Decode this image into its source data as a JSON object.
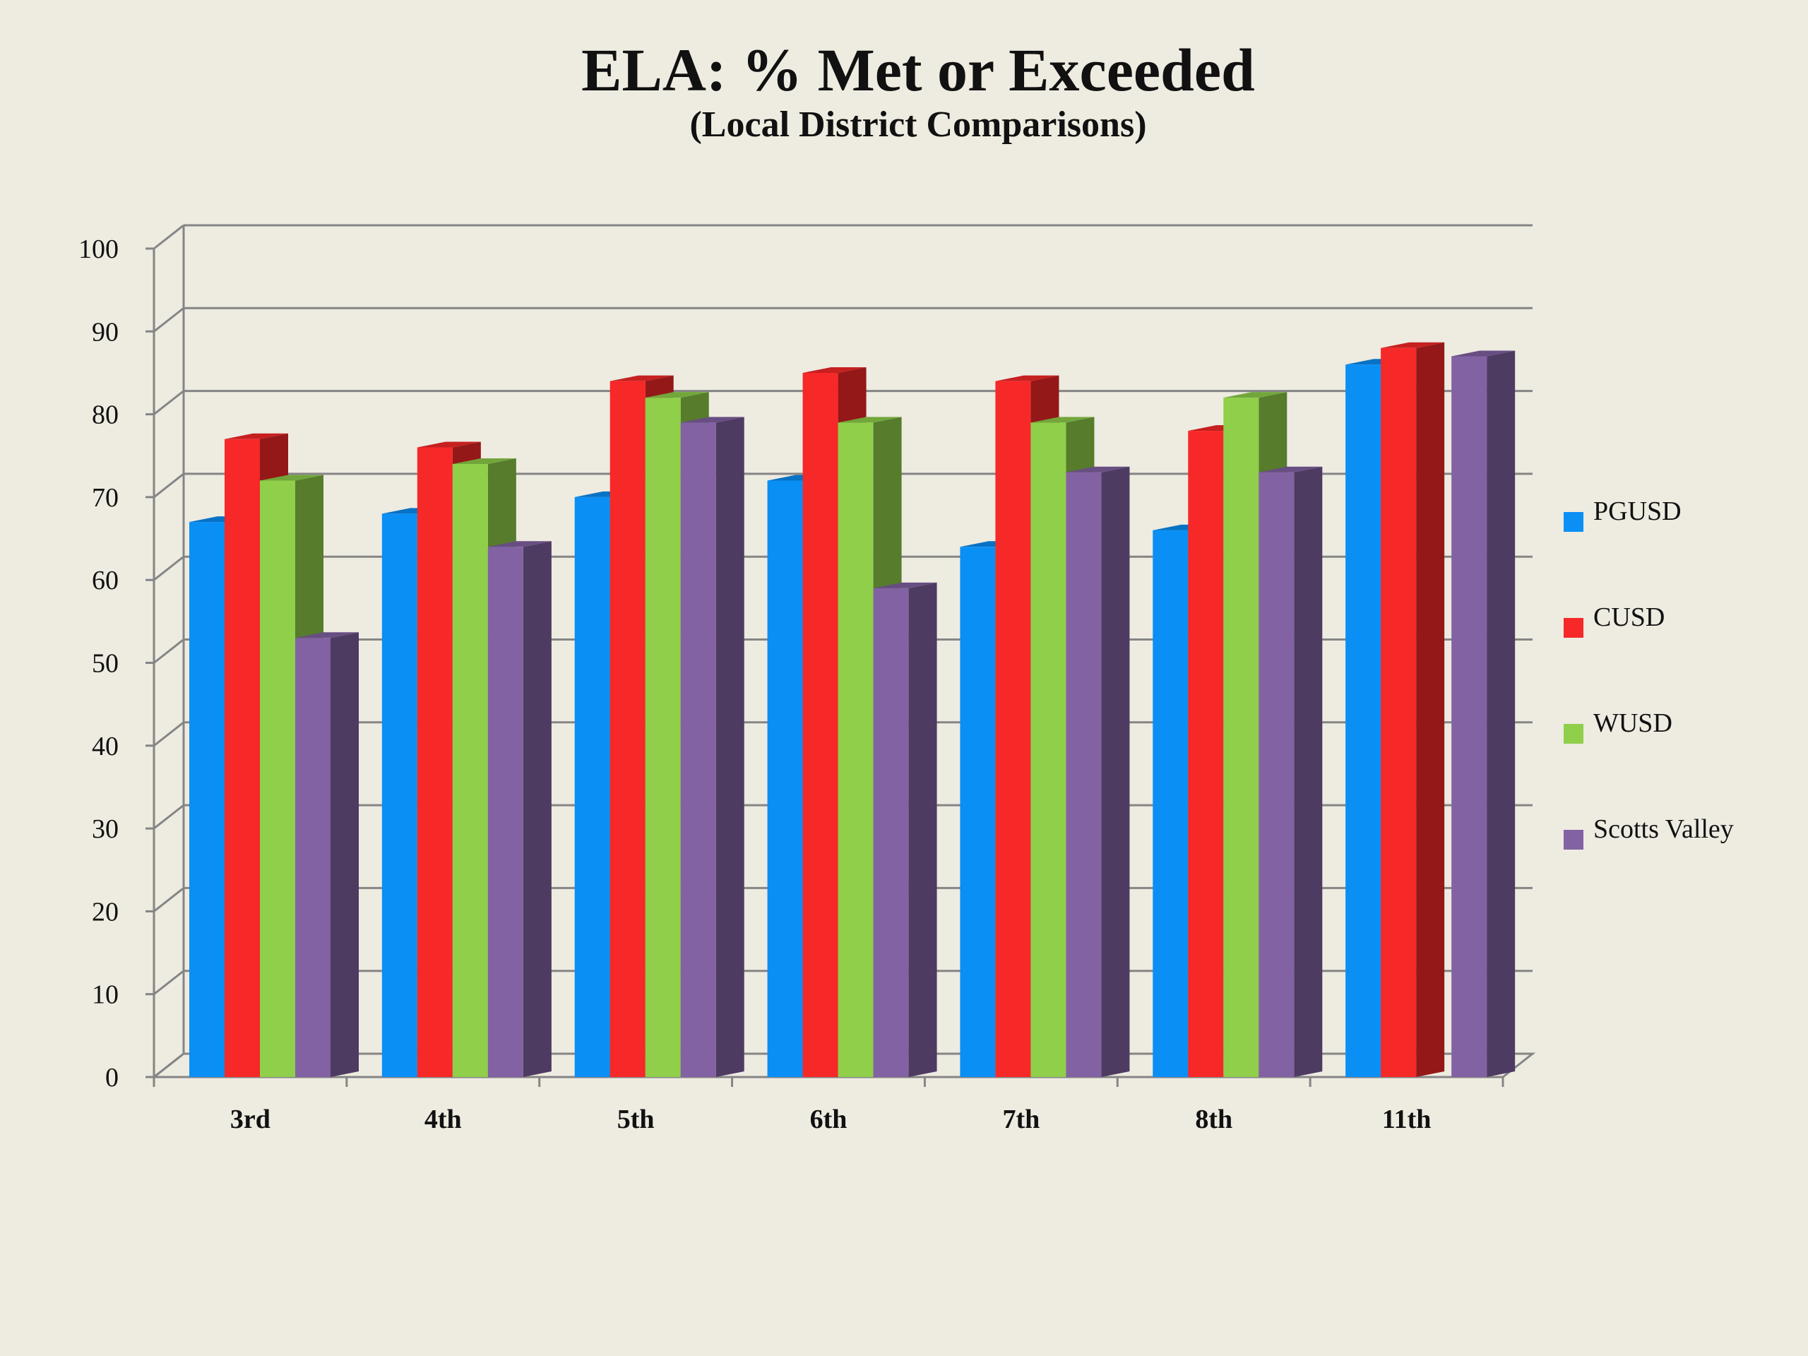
{
  "chart_data": {
    "type": "bar",
    "title": "ELA: % Met or Exceeded",
    "subtitle": "(Local District Comparisons)",
    "xlabel": "",
    "ylabel": "",
    "ylim": [
      0,
      100
    ],
    "yticks": [
      "0",
      "10",
      "20",
      "30",
      "40",
      "50",
      "60",
      "70",
      "80",
      "90",
      "100"
    ],
    "grid": true,
    "legend_position": "right",
    "categories": [
      "3rd",
      "4th",
      "5th",
      "6th",
      "7th",
      "8th",
      "11th"
    ],
    "series": [
      {
        "name": "PGUSD",
        "color": "#0a8ff5",
        "values": [
          67,
          68,
          70,
          72,
          64,
          66,
          86
        ]
      },
      {
        "name": "CUSD",
        "color": "#f72828",
        "values": [
          77,
          76,
          84,
          85,
          84,
          78,
          88
        ]
      },
      {
        "name": "WUSD",
        "color": "#8fcf4a",
        "values": [
          72,
          74,
          82,
          79,
          79,
          82,
          null
        ]
      },
      {
        "name": "Scotts Valley",
        "color": "#8262a3",
        "values": [
          53,
          64,
          79,
          59,
          73,
          73,
          87
        ]
      }
    ]
  }
}
